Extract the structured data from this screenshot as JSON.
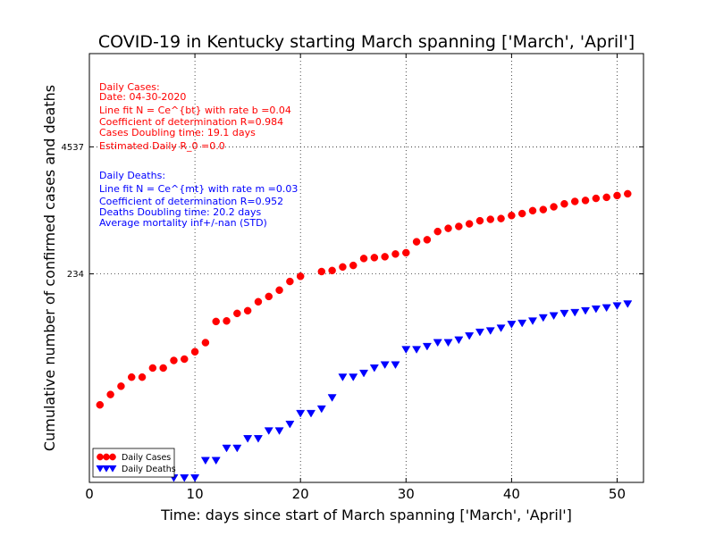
{
  "chart_data": {
    "type": "scatter",
    "title": "COVID-19 in Kentucky starting March spanning ['March', 'April']",
    "xlabel": "Time: days since start of March spanning ['March', 'April']",
    "ylabel": "Cumulative number of confirmed cases and deaths",
    "xlim": [
      0,
      52.5
    ],
    "ylim": [
      1.8,
      40000
    ],
    "yscale": "log",
    "xticks": [
      0,
      10,
      20,
      30,
      40,
      50
    ],
    "yticks": [
      234,
      4537
    ],
    "grid": true,
    "legend_position": "lower-left",
    "series": [
      {
        "name": "Daily Cases",
        "color": "#ff0000",
        "marker": "circle",
        "x": [
          1,
          2,
          3,
          4,
          5,
          6,
          7,
          8,
          9,
          10,
          11,
          12,
          13,
          14,
          15,
          16,
          17,
          18,
          19,
          20,
          22,
          23,
          24,
          25,
          26,
          27,
          28,
          29,
          30,
          31,
          32,
          33,
          34,
          35,
          36,
          37,
          38,
          39,
          40,
          41,
          42,
          43,
          44,
          45,
          46,
          47,
          48,
          49,
          50,
          51
        ],
        "y": [
          11,
          14,
          17,
          21,
          21,
          26,
          26,
          31,
          32,
          38,
          47,
          77,
          78,
          93,
          99,
          122,
          138,
          160,
          196,
          221,
          247,
          253,
          275,
          285,
          335,
          342,
          349,
          372,
          383,
          495,
          519,
          629,
          677,
          708,
          752,
          808,
          835,
          851,
          913,
          956,
          1023,
          1049,
          1119,
          1199,
          1269,
          1299,
          1363,
          1397,
          1456,
          1517
        ]
      },
      {
        "name": "Daily Deaths",
        "color": "#0000ff",
        "marker": "triangle-down",
        "x": [
          8,
          9,
          10,
          11,
          12,
          13,
          14,
          15,
          16,
          17,
          18,
          19,
          20,
          21,
          22,
          23,
          24,
          25,
          26,
          27,
          28,
          29,
          30,
          31,
          32,
          33,
          34,
          35,
          36,
          37,
          38,
          39,
          40,
          41,
          42,
          43,
          44,
          45,
          46,
          47,
          48,
          49,
          50,
          51
        ],
        "y": [
          2,
          2,
          2,
          3,
          3,
          4,
          4,
          5,
          5,
          6,
          6,
          7,
          9,
          9,
          10,
          13,
          21,
          21,
          23,
          26,
          28,
          28,
          40,
          40,
          43,
          47,
          47,
          50,
          55,
          60,
          62,
          66,
          72,
          74,
          78,
          84,
          88,
          93,
          95,
          99,
          103,
          106,
          111,
          116
        ]
      }
    ],
    "annotations": {
      "cases": {
        "color": "#ff0000",
        "lines": [
          "Daily Cases:",
          "Date: 04-30-2020",
          "Line fit N = Ce^{bt} with rate b =0.04",
          "Coefficient of determination R=0.984",
          "Cases Doubling time: 19.1 days",
          "Estimated Daily R_0 =0.0"
        ]
      },
      "deaths": {
        "color": "#0000ff",
        "lines": [
          "Daily Deaths:",
          "Line fit N = Ce^{mt} with rate m =0.03",
          "Coefficient of determination R=0.952",
          "Deaths Doubling time: 20.2 days",
          "Average mortality inf+/-nan (STD)"
        ]
      }
    }
  }
}
